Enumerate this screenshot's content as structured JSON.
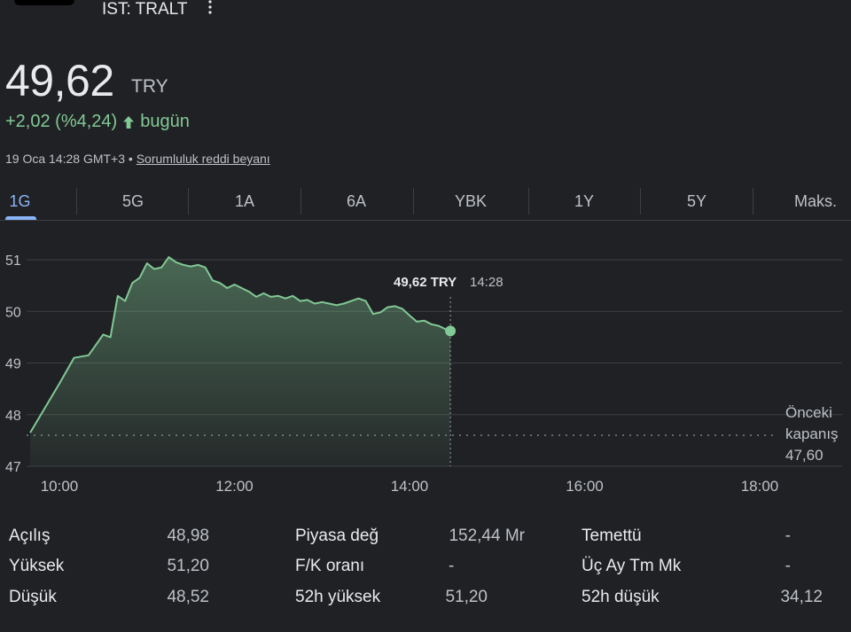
{
  "header": {
    "ticker": "IST: TRALT"
  },
  "quote": {
    "price": "49,62",
    "currency": "TRY",
    "change": "+2,02 (%4,24)",
    "change_suffix": "bugün",
    "timestamp": "19 Oca 14:28 GMT+3",
    "separator": "•",
    "disclaimer": "Sorumluluk reddi beyanı"
  },
  "tabs": [
    "1G",
    "5G",
    "1A",
    "6A",
    "YBK",
    "1Y",
    "5Y",
    "Maks."
  ],
  "active_tab": "1G",
  "colors": {
    "up": "#81c995",
    "accent": "#8ab4f8",
    "background": "#202124"
  },
  "chart_data": {
    "type": "area",
    "x_ticks": [
      "10:00",
      "12:00",
      "14:00",
      "16:00",
      "18:00"
    ],
    "y_ticks": [
      "47",
      "48",
      "49",
      "50",
      "51"
    ],
    "ylim": [
      47,
      51.3
    ],
    "xlim": [
      "09:40",
      "19:20"
    ],
    "grid": true,
    "series": [
      {
        "x": [
          "09:40",
          "10:00",
          "10:10",
          "10:20",
          "10:30",
          "10:35",
          "10:40",
          "10:45",
          "10:50",
          "10:55",
          "11:00",
          "11:05",
          "11:10",
          "11:15",
          "11:20",
          "11:25",
          "11:30",
          "11:35",
          "11:40",
          "11:45",
          "11:50",
          "11:55",
          "12:00",
          "12:05",
          "12:10",
          "12:15",
          "12:20",
          "12:25",
          "12:30",
          "12:35",
          "12:40",
          "12:45",
          "12:50",
          "12:55",
          "13:00",
          "13:05",
          "13:10",
          "13:15",
          "13:20",
          "13:25",
          "13:30",
          "13:35",
          "13:40",
          "13:45",
          "13:50",
          "13:55",
          "14:00",
          "14:05",
          "14:10",
          "14:15",
          "14:20",
          "14:25",
          "14:28"
        ],
        "y": [
          47.65,
          48.6,
          49.1,
          49.15,
          49.55,
          49.5,
          50.3,
          50.2,
          50.55,
          50.65,
          50.93,
          50.82,
          50.85,
          51.05,
          50.95,
          50.9,
          50.87,
          50.9,
          50.85,
          50.6,
          50.55,
          50.45,
          50.52,
          50.45,
          50.38,
          50.28,
          50.35,
          50.28,
          50.3,
          50.25,
          50.3,
          50.2,
          50.22,
          50.15,
          50.18,
          50.15,
          50.12,
          50.15,
          50.2,
          50.25,
          50.2,
          49.95,
          49.98,
          50.08,
          50.1,
          50.05,
          49.92,
          49.8,
          49.82,
          49.75,
          49.72,
          49.65,
          49.62
        ]
      }
    ],
    "previous_close": {
      "label_line1": "Önceki",
      "label_line2": "kapanış",
      "value": 47.6,
      "value_text": "47,60"
    },
    "tooltip": {
      "price": "49,62 TRY",
      "time": "14:28"
    }
  },
  "stats": [
    {
      "label": "Açılış",
      "value": "48,98"
    },
    {
      "label": "Yüksek",
      "value": "51,20"
    },
    {
      "label": "Düşük",
      "value": "48,52"
    },
    {
      "label": "Piyasa değ",
      "value": "152,44 Mr"
    },
    {
      "label": "F/K oranı",
      "value": "-"
    },
    {
      "label": "52h yüksek",
      "value": "51,20"
    },
    {
      "label": "Temettü",
      "value": "-"
    },
    {
      "label": "Üç Ay Tm Mk",
      "value": "-"
    },
    {
      "label": "52h düşük",
      "value": "34,12"
    }
  ]
}
